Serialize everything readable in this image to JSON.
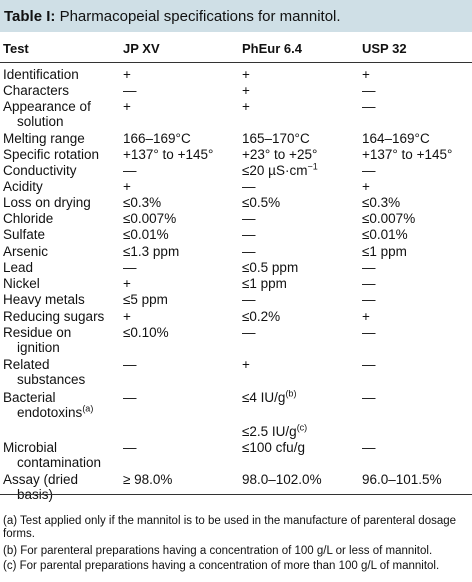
{
  "table": {
    "title_label": "Table I:",
    "title_text": "Pharmacopeial specifications for mannitol.",
    "headers": [
      "Test",
      "JP XV",
      "PhEur 6.4",
      "USP 32"
    ],
    "rows": [
      {
        "test": "Identification",
        "jp": "+",
        "pheur": "+",
        "usp": "+"
      },
      {
        "test": "Characters",
        "jp": "—",
        "pheur": "+",
        "usp": "—"
      },
      {
        "test": "Appearance of",
        "test2": "solution",
        "jp": "+",
        "pheur": "+",
        "usp": "—"
      },
      {
        "test": "Melting range",
        "jp": "166–169°C",
        "pheur": "165–170°C",
        "usp": "164–169°C"
      },
      {
        "test": "Specific rotation",
        "jp": "+137° to +145°",
        "pheur": "+23° to +25°",
        "usp": "+137° to +145°"
      },
      {
        "test": "Conductivity",
        "jp": "—",
        "pheur": "≤20 µS·cm",
        "pheur_sup": "−1",
        "usp": "—"
      },
      {
        "test": "Acidity",
        "jp": "+",
        "pheur": "—",
        "usp": "+"
      },
      {
        "test": "Loss on drying",
        "jp": "≤0.3%",
        "pheur": "≤0.5%",
        "usp": "≤0.3%"
      },
      {
        "test": "Chloride",
        "jp": "≤0.007%",
        "pheur": "—",
        "usp": "≤0.007%"
      },
      {
        "test": "Sulfate",
        "jp": "≤0.01%",
        "pheur": "—",
        "usp": "≤0.01%"
      },
      {
        "test": "Arsenic",
        "jp": "≤1.3 ppm",
        "pheur": "—",
        "usp": "≤1 ppm"
      },
      {
        "test": "Lead",
        "jp": "—",
        "pheur": "≤0.5 ppm",
        "usp": "—"
      },
      {
        "test": "Nickel",
        "jp": "+",
        "pheur": "≤1 ppm",
        "usp": "—"
      },
      {
        "test": "Heavy metals",
        "jp": "≤5 ppm",
        "pheur": "—",
        "usp": "—"
      },
      {
        "test": "Reducing sugars",
        "jp": "+",
        "pheur": "≤0.2%",
        "usp": "+"
      },
      {
        "test": "Residue on",
        "test2": "ignition",
        "jp": "≤0.10%",
        "pheur": "—",
        "usp": "—"
      },
      {
        "test": "Related",
        "test2": "substances",
        "jp": "—",
        "pheur": "+",
        "usp": "—"
      },
      {
        "test": "Bacterial",
        "test2": "endotoxins",
        "test2_sup": "(a)",
        "jp": "—",
        "pheur": "≤4 IU/g",
        "pheur_sup": "(b)",
        "usp": "—"
      },
      {
        "test": "",
        "jp": "",
        "pheur": "≤2.5 IU/g",
        "pheur_sup": "(c)",
        "usp": ""
      },
      {
        "test": "Microbial",
        "test2": "contamination",
        "jp": "—",
        "pheur": "≤100 cfu/g",
        "usp": "—"
      },
      {
        "test": "Assay (dried",
        "test2": "basis)",
        "jp": "≥ 98.0%",
        "pheur": "98.0–102.0%",
        "usp": "96.0–101.5%"
      }
    ]
  },
  "footnotes": [
    "(a) Test applied only if the mannitol is to be used in the manufacture of parenteral dosage forms.",
    "(b) For parenteral preparations having a concentration of 100 g/L or less of mannitol.",
    "(c) For parental preparations having a concentration of more than 100 g/L of mannitol."
  ],
  "colors": {
    "title_bar": "#cfdfe6",
    "rule": "#333333"
  }
}
